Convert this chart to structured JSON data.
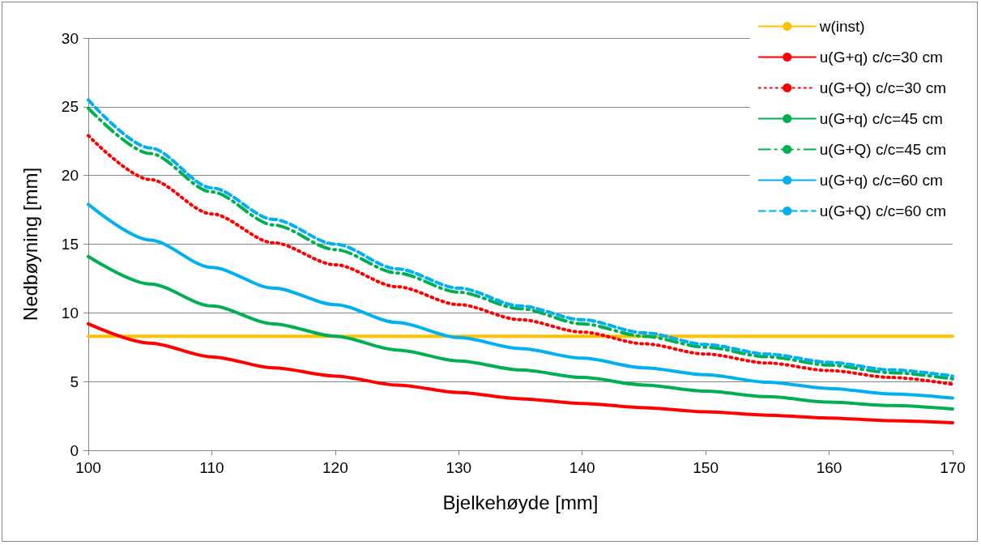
{
  "chart_data": {
    "type": "line",
    "xlabel": "Bjelkehøyde [mm]",
    "ylabel": "Nedbøyning [mm]",
    "x": [
      100,
      105,
      110,
      115,
      120,
      125,
      130,
      135,
      140,
      145,
      150,
      155,
      160,
      165,
      170
    ],
    "series": [
      {
        "name": "w(inst)",
        "color": "#ffc000",
        "line_style": "solid",
        "x": [
          100,
          170
        ],
        "values": [
          8.3,
          8.3
        ]
      },
      {
        "name": "u(G+q) c/c=30 cm",
        "color": "#ff0000",
        "line_style": "solid",
        "values": [
          9.2,
          7.8,
          6.8,
          6.0,
          5.4,
          4.75,
          4.2,
          3.75,
          3.4,
          3.1,
          2.8,
          2.55,
          2.35,
          2.15,
          2.0
        ]
      },
      {
        "name": "u(G+Q) c/c=30 cm",
        "color": "#ff0000",
        "line_style": "dotted",
        "values": [
          22.9,
          19.7,
          17.2,
          15.1,
          13.5,
          11.9,
          10.6,
          9.5,
          8.6,
          7.75,
          7.0,
          6.35,
          5.8,
          5.3,
          4.8
        ]
      },
      {
        "name": "u(G+q) c/c=45 cm",
        "color": "#00b050",
        "line_style": "solid",
        "values": [
          14.1,
          12.1,
          10.5,
          9.2,
          8.3,
          7.3,
          6.5,
          5.85,
          5.3,
          4.75,
          4.3,
          3.9,
          3.5,
          3.25,
          3.0
        ]
      },
      {
        "name": "u(G+Q) c/c=45 cm",
        "color": "#00b050",
        "line_style": "dashdot",
        "values": [
          24.9,
          21.6,
          18.8,
          16.4,
          14.6,
          12.9,
          11.5,
          10.3,
          9.2,
          8.3,
          7.5,
          6.8,
          6.2,
          5.65,
          5.2
        ]
      },
      {
        "name": "u(G+q) c/c=60 cm",
        "color": "#00b0f0",
        "line_style": "solid",
        "values": [
          17.9,
          15.3,
          13.3,
          11.8,
          10.6,
          9.3,
          8.2,
          7.4,
          6.7,
          6.0,
          5.5,
          4.95,
          4.5,
          4.1,
          3.8
        ]
      },
      {
        "name": "u(G+Q) c/c=60 cm",
        "color": "#00b0f0",
        "line_style": "dashed",
        "values": [
          25.5,
          22.0,
          19.1,
          16.8,
          15.0,
          13.2,
          11.8,
          10.5,
          9.5,
          8.55,
          7.7,
          7.0,
          6.4,
          5.85,
          5.4
        ]
      }
    ],
    "xlim": [
      100,
      170
    ],
    "xticks": [
      100,
      110,
      120,
      130,
      140,
      150,
      160,
      170
    ],
    "ylim": [
      0,
      30
    ],
    "yticks": [
      0,
      5,
      10,
      15,
      20,
      25,
      30
    ],
    "grid": "y",
    "legend": "top right",
    "marker": "none"
  }
}
